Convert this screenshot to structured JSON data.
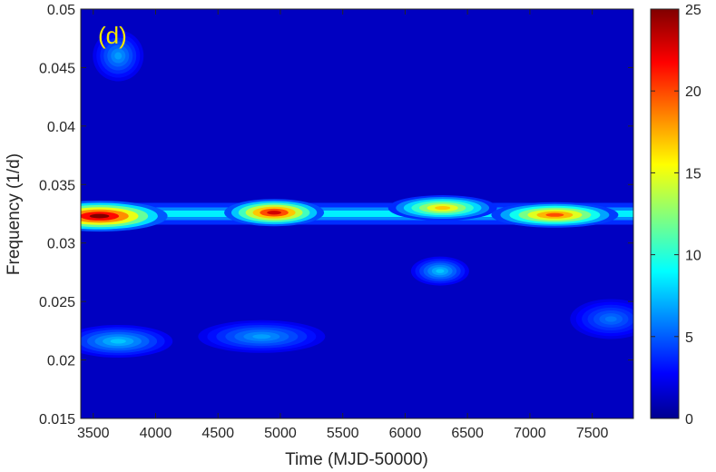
{
  "chart_data": {
    "type": "heatmap",
    "panel_label": "(d)",
    "xlabel": "Time (MJD-50000)",
    "ylabel": "Frequency (1/d)",
    "xlim": [
      3400,
      7830
    ],
    "ylim": [
      0.015,
      0.05
    ],
    "xticks": [
      3500,
      4000,
      4500,
      5000,
      5500,
      6000,
      6500,
      7000,
      7500
    ],
    "yticks": [
      0.015,
      0.02,
      0.025,
      0.03,
      0.035,
      0.04,
      0.045,
      0.05
    ],
    "ytick_labels": [
      "0.015",
      "0.02",
      "0.025",
      "0.03",
      "0.035",
      "0.04",
      "0.045",
      "0.05"
    ],
    "colorbar": {
      "min": 0,
      "max": 25,
      "ticks": [
        0,
        5,
        10,
        15,
        20,
        25
      ],
      "colormap": "jet"
    },
    "dominant_band_frequency": 0.0325,
    "hotspots": [
      {
        "x": 3550,
        "y": 0.0323,
        "value": 25
      },
      {
        "x": 4950,
        "y": 0.0326,
        "value": 23
      },
      {
        "x": 6300,
        "y": 0.033,
        "value": 17
      },
      {
        "x": 7200,
        "y": 0.0324,
        "value": 20
      },
      {
        "x": 6280,
        "y": 0.0276,
        "value": 8
      },
      {
        "x": 3700,
        "y": 0.0216,
        "value": 8
      },
      {
        "x": 4850,
        "y": 0.022,
        "value": 7
      },
      {
        "x": 3700,
        "y": 0.046,
        "value": 7
      },
      {
        "x": 7650,
        "y": 0.0235,
        "value": 6
      }
    ],
    "colors": {
      "panel_label": "#f2e600",
      "axis": "#262626"
    }
  }
}
